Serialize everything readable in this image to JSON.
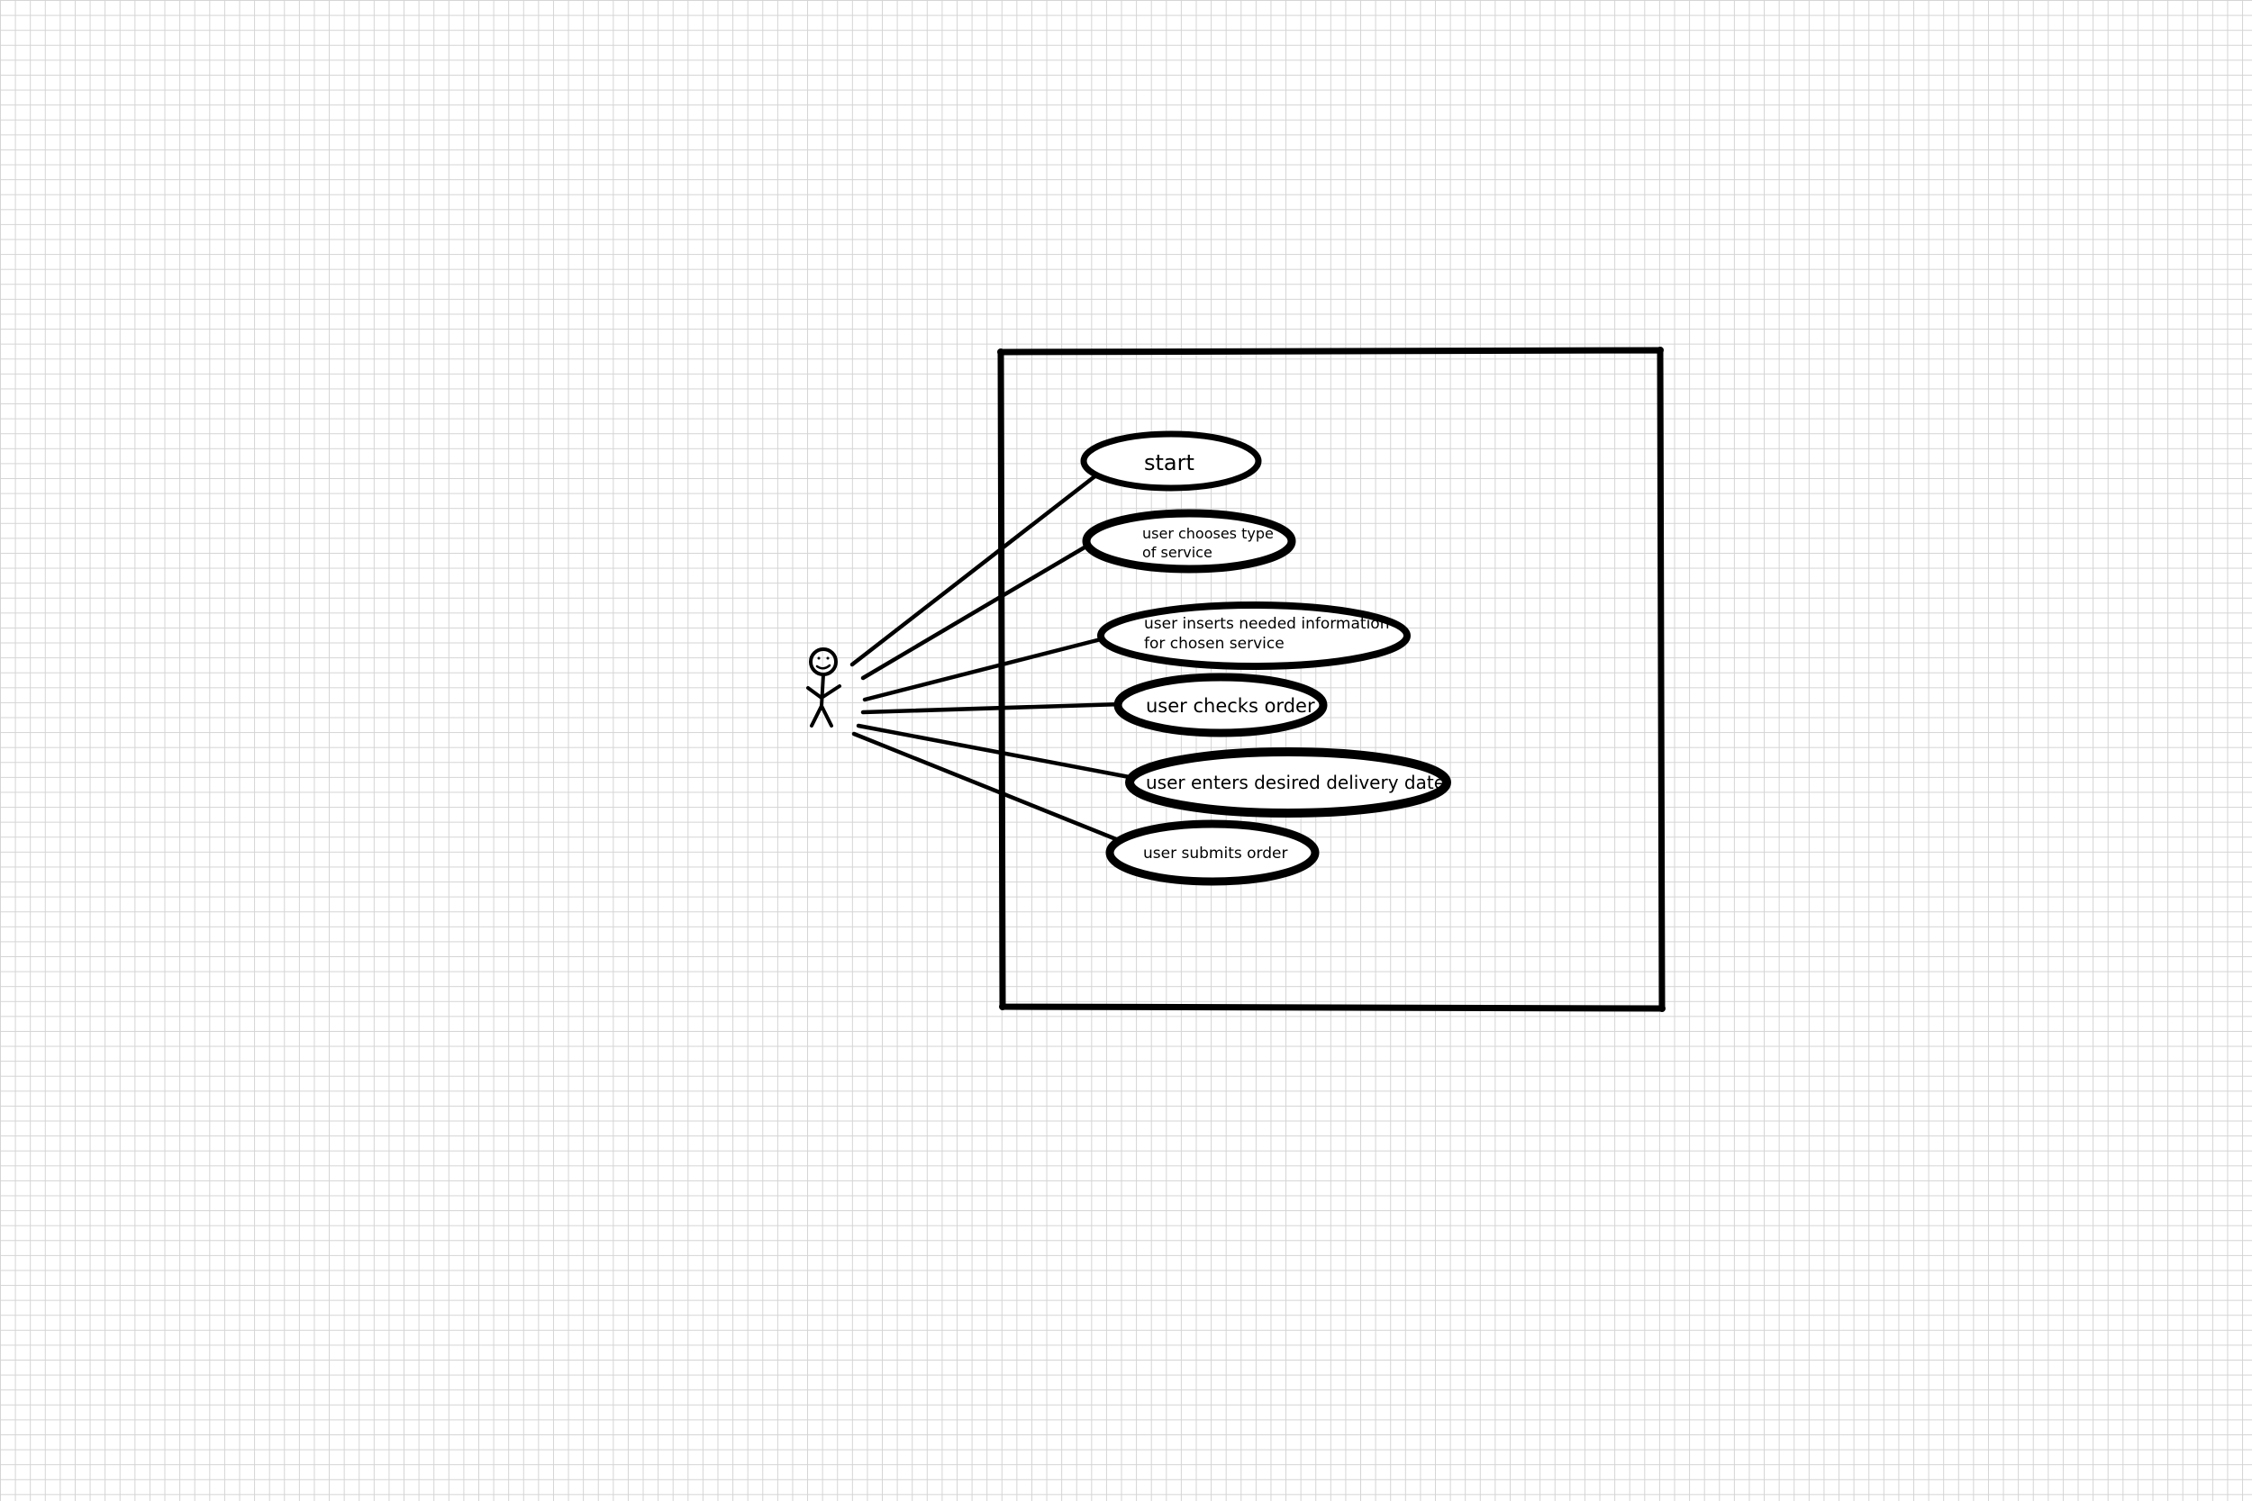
{
  "diagram": {
    "colors": {
      "stroke": "#000000",
      "background": "#ffffff",
      "grid": "#d4d4d4"
    },
    "actor": {
      "icon": "stick-figure-icon"
    },
    "use_cases": [
      {
        "id": "start",
        "lines": [
          "start"
        ]
      },
      {
        "id": "choose-service",
        "lines": [
          "user chooses type",
          "of service"
        ]
      },
      {
        "id": "insert-info",
        "lines": [
          "user inserts needed information",
          "for chosen service"
        ]
      },
      {
        "id": "check-order",
        "lines": [
          "user checks order"
        ]
      },
      {
        "id": "enter-date",
        "lines": [
          "user enters desired delivery date"
        ]
      },
      {
        "id": "submit-order",
        "lines": [
          "user submits order"
        ]
      }
    ]
  }
}
